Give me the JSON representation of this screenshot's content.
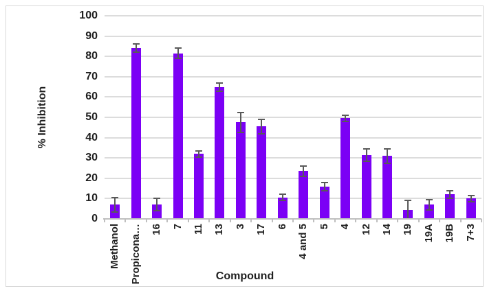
{
  "figure": {
    "background": "#FFFFFF",
    "frame_border_color": "#D8D8D8"
  },
  "chart_data": {
    "type": "bar",
    "title": "",
    "xlabel": "Compound",
    "ylabel": "% Inhibition",
    "ylim": [
      0,
      100
    ],
    "ytick_labels": [
      "0",
      "10",
      "20",
      "30",
      "40",
      "50",
      "60",
      "70",
      "80",
      "90",
      "100"
    ],
    "grid": true,
    "legend": false,
    "categories": [
      "Methanol",
      "Propicona…",
      "16",
      "7",
      "11",
      "13",
      "3",
      "17",
      "6",
      "4 and 5",
      "5",
      "4",
      "12",
      "14",
      "19",
      "19A",
      "19B",
      "7+3"
    ],
    "values": [
      7,
      84,
      7,
      81.5,
      32,
      65,
      47.5,
      45.5,
      10.5,
      23.5,
      16,
      49.5,
      31.5,
      31,
      4.5,
      7,
      12,
      10
    ],
    "errors": [
      3.5,
      2,
      3,
      2.5,
      1.5,
      2,
      5,
      3.5,
      1.5,
      2.5,
      2,
      1.5,
      3,
      3.5,
      4.5,
      2.5,
      2,
      1.5
    ],
    "bar_color": "#7B00F5",
    "error_bar_color": "#595959",
    "gridline_color": "#DCDCDC",
    "axis_line_color": "#BFBFBF",
    "text_color": "#1F1F1F"
  }
}
